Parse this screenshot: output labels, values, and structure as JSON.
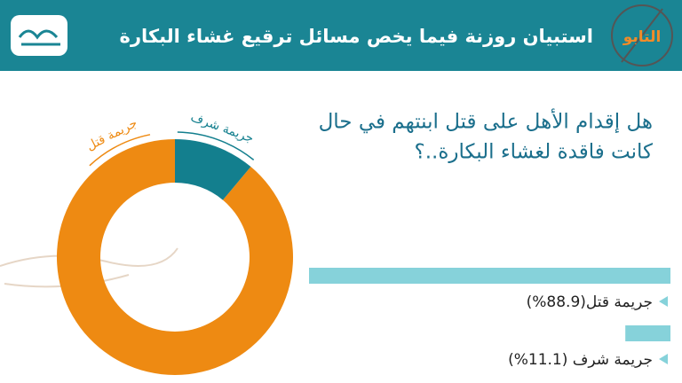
{
  "header": {
    "title": "استبيان روزنة فيما يخص مسائل ترقيع غشاء البكارة",
    "brand": "التابو"
  },
  "chart_data": {
    "type": "pie",
    "title_lines": [
      "هل إقدام الأهل على قتل ابنتهم في حال",
      "كانت فاقدة لغشاء البكارة..؟"
    ],
    "categories": [
      "جريمة قتل",
      "جريمة شرف"
    ],
    "values": [
      88.9,
      11.1
    ],
    "value_labels": [
      "جريمة قتل(88.9%)",
      "جريمة شرف (11.1%)"
    ],
    "colors": [
      "#ee8a12",
      "#137f8e"
    ],
    "bar_color": "#86d2da"
  }
}
